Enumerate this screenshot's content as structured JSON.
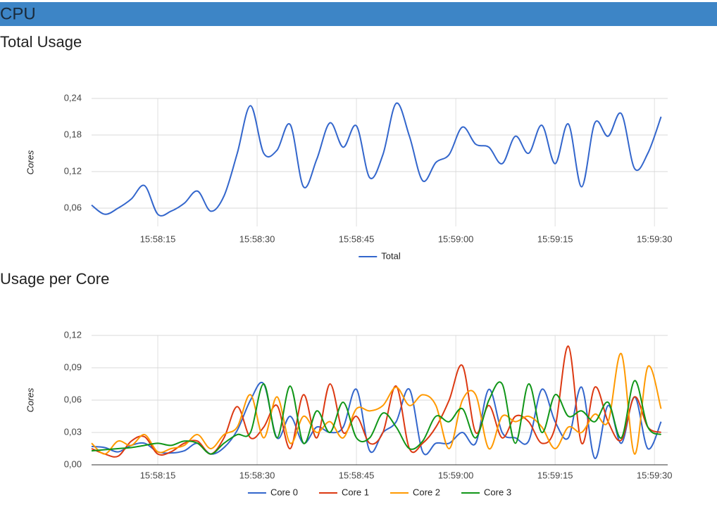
{
  "header": {
    "title": "CPU"
  },
  "chart_data": [
    {
      "type": "line",
      "title": "Total Usage",
      "ylabel": "Cores",
      "x": [
        "15:58:05",
        "15:58:07",
        "15:58:09",
        "15:58:11",
        "15:58:13",
        "15:58:15",
        "15:58:17",
        "15:58:19",
        "15:58:21",
        "15:58:23",
        "15:58:25",
        "15:58:27",
        "15:58:29",
        "15:58:31",
        "15:58:33",
        "15:58:35",
        "15:58:37",
        "15:58:39",
        "15:58:41",
        "15:58:43",
        "15:58:45",
        "15:58:47",
        "15:58:49",
        "15:58:51",
        "15:58:53",
        "15:58:55",
        "15:58:57",
        "15:58:59",
        "15:59:01",
        "15:59:03",
        "15:59:05",
        "15:59:07",
        "15:59:09",
        "15:59:11",
        "15:59:13",
        "15:59:15",
        "15:59:17",
        "15:59:19",
        "15:59:21",
        "15:59:23",
        "15:59:25",
        "15:59:27",
        "15:59:29",
        "15:59:31"
      ],
      "xlim": [
        "15:58:05",
        "15:59:32"
      ],
      "xticks": [
        "15:58:15",
        "15:58:30",
        "15:58:45",
        "15:59:00",
        "15:59:15",
        "15:59:30"
      ],
      "ylim": [
        0.03,
        0.24
      ],
      "yticks": [
        {
          "value": 0.06,
          "label": "0,06"
        },
        {
          "value": 0.12,
          "label": "0,12"
        },
        {
          "value": 0.18,
          "label": "0,18"
        },
        {
          "value": 0.24,
          "label": "0,24"
        }
      ],
      "grid": true,
      "legend": "bottom",
      "series": [
        {
          "name": "Total",
          "color": "#3366cc",
          "values": [
            0.065,
            0.05,
            0.06,
            0.075,
            0.097,
            0.05,
            0.055,
            0.068,
            0.088,
            0.055,
            0.08,
            0.15,
            0.228,
            0.15,
            0.155,
            0.197,
            0.095,
            0.14,
            0.2,
            0.16,
            0.195,
            0.11,
            0.148,
            0.232,
            0.178,
            0.105,
            0.135,
            0.148,
            0.193,
            0.165,
            0.16,
            0.133,
            0.178,
            0.15,
            0.196,
            0.133,
            0.198,
            0.095,
            0.2,
            0.178,
            0.215,
            0.125,
            0.15,
            0.21
          ]
        }
      ]
    },
    {
      "type": "line",
      "title": "Usage per Core",
      "ylabel": "Cores",
      "x": [
        "15:58:05",
        "15:58:07",
        "15:58:09",
        "15:58:11",
        "15:58:13",
        "15:58:15",
        "15:58:17",
        "15:58:19",
        "15:58:21",
        "15:58:23",
        "15:58:25",
        "15:58:27",
        "15:58:29",
        "15:58:31",
        "15:58:33",
        "15:58:35",
        "15:58:37",
        "15:58:39",
        "15:58:41",
        "15:58:43",
        "15:58:45",
        "15:58:47",
        "15:58:49",
        "15:58:51",
        "15:58:53",
        "15:58:55",
        "15:58:57",
        "15:58:59",
        "15:59:01",
        "15:59:03",
        "15:59:05",
        "15:59:07",
        "15:59:09",
        "15:59:11",
        "15:59:13",
        "15:59:15",
        "15:59:17",
        "15:59:19",
        "15:59:21",
        "15:59:23",
        "15:59:25",
        "15:59:27",
        "15:59:29",
        "15:59:31"
      ],
      "xlim": [
        "15:58:05",
        "15:59:32"
      ],
      "xticks": [
        "15:58:15",
        "15:58:30",
        "15:58:45",
        "15:59:00",
        "15:59:15",
        "15:59:30"
      ],
      "ylim": [
        0,
        0.12
      ],
      "yticks": [
        {
          "value": 0,
          "label": "0,00"
        },
        {
          "value": 0.03,
          "label": "0,03"
        },
        {
          "value": 0.06,
          "label": "0,06"
        },
        {
          "value": 0.09,
          "label": "0,09"
        },
        {
          "value": 0.12,
          "label": "0,12"
        }
      ],
      "grid": true,
      "legend": "bottom",
      "series": [
        {
          "name": "Core 0",
          "color": "#3366cc",
          "values": [
            0.017,
            0.016,
            0.012,
            0.018,
            0.02,
            0.012,
            0.011,
            0.013,
            0.02,
            0.01,
            0.016,
            0.032,
            0.06,
            0.075,
            0.025,
            0.045,
            0.02,
            0.035,
            0.03,
            0.035,
            0.07,
            0.013,
            0.03,
            0.04,
            0.07,
            0.012,
            0.02,
            0.02,
            0.03,
            0.02,
            0.07,
            0.03,
            0.025,
            0.022,
            0.07,
            0.04,
            0.025,
            0.072,
            0.006,
            0.055,
            0.02,
            0.063,
            0.015,
            0.04
          ]
        },
        {
          "name": "Core 1",
          "color": "#dc3912",
          "values": [
            0.015,
            0.01,
            0.008,
            0.022,
            0.026,
            0.01,
            0.012,
            0.02,
            0.022,
            0.01,
            0.025,
            0.054,
            0.025,
            0.035,
            0.055,
            0.015,
            0.065,
            0.025,
            0.075,
            0.03,
            0.045,
            0.02,
            0.03,
            0.073,
            0.015,
            0.02,
            0.035,
            0.06,
            0.092,
            0.03,
            0.055,
            0.025,
            0.045,
            0.04,
            0.02,
            0.035,
            0.11,
            0.02,
            0.072,
            0.04,
            0.023,
            0.063,
            0.035,
            0.03
          ]
        },
        {
          "name": "Core 2",
          "color": "#ff9900",
          "values": [
            0.02,
            0.01,
            0.022,
            0.018,
            0.028,
            0.012,
            0.015,
            0.018,
            0.028,
            0.015,
            0.028,
            0.035,
            0.065,
            0.025,
            0.063,
            0.02,
            0.045,
            0.03,
            0.04,
            0.025,
            0.052,
            0.05,
            0.055,
            0.072,
            0.055,
            0.065,
            0.055,
            0.015,
            0.06,
            0.065,
            0.015,
            0.045,
            0.04,
            0.045,
            0.035,
            0.015,
            0.035,
            0.03,
            0.047,
            0.04,
            0.103,
            0.01,
            0.091,
            0.052
          ]
        },
        {
          "name": "Core 3",
          "color": "#109618",
          "values": [
            0.013,
            0.014,
            0.015,
            0.016,
            0.018,
            0.02,
            0.018,
            0.022,
            0.02,
            0.01,
            0.02,
            0.028,
            0.03,
            0.075,
            0.025,
            0.073,
            0.02,
            0.05,
            0.03,
            0.058,
            0.025,
            0.025,
            0.048,
            0.035,
            0.015,
            0.022,
            0.045,
            0.04,
            0.052,
            0.025,
            0.06,
            0.075,
            0.02,
            0.075,
            0.03,
            0.065,
            0.045,
            0.05,
            0.04,
            0.058,
            0.025,
            0.078,
            0.035,
            0.028
          ]
        }
      ]
    }
  ]
}
